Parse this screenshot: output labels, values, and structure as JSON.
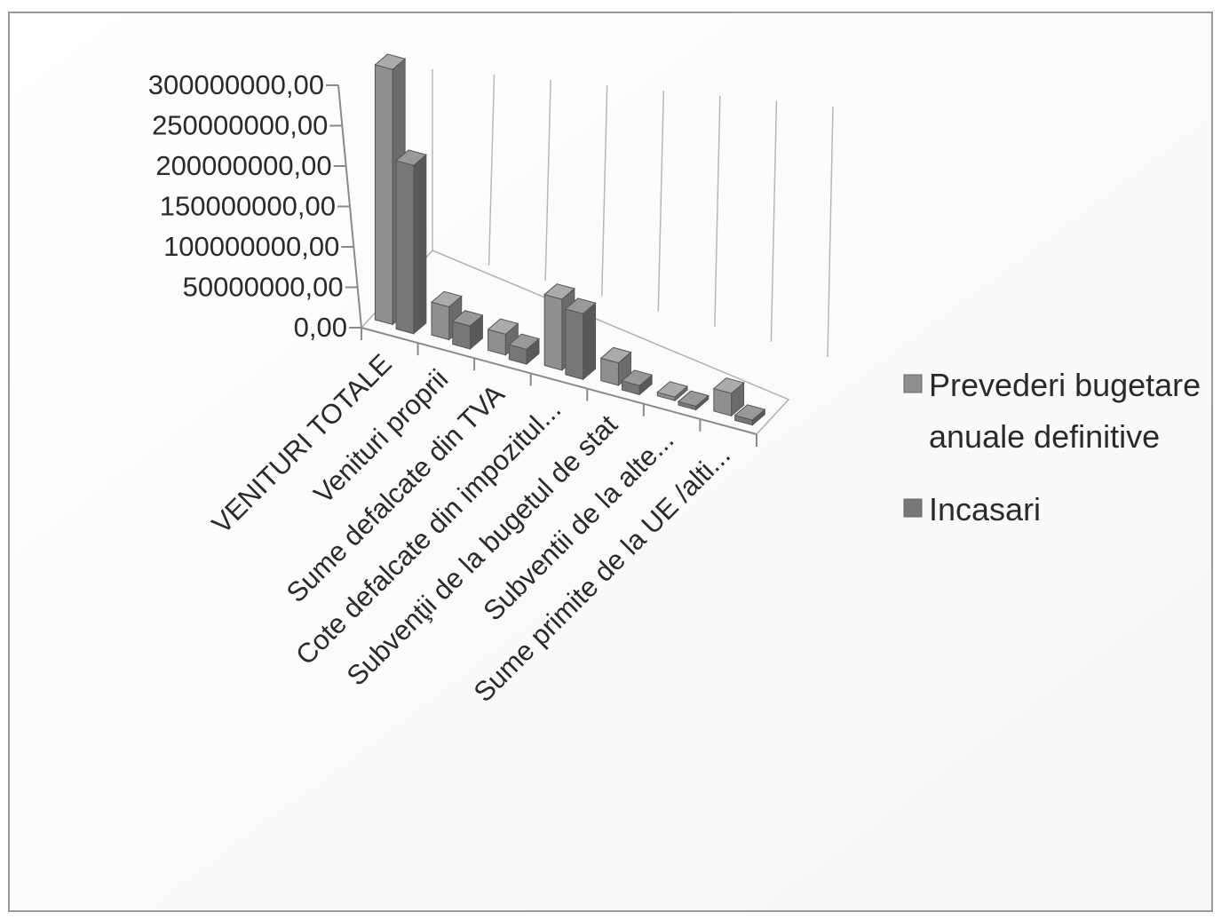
{
  "chart_data": {
    "type": "bar",
    "subtype": "3d-clustered-column",
    "title": "",
    "xlabel": "",
    "ylabel": "",
    "ylim": [
      0,
      300000000
    ],
    "yticks": [
      "0,00",
      "50000000,00",
      "100000000,00",
      "150000000,00",
      "200000000,00",
      "250000000,00",
      "300000000,00"
    ],
    "grid": true,
    "legend_position": "right",
    "categories": [
      "VENITURI TOTALE",
      "Venituri proprii",
      "Sume defalcate din TVA",
      "Cote defalcate din impozitul...",
      "Subvenţii de la bugetul de stat",
      "Subventii de la alte...",
      "Sume primite de la UE /alti..."
    ],
    "series": [
      {
        "name_lines": [
          "Prevederi bugetare",
          "anuale definitive"
        ],
        "color": "#8f8f8f",
        "values": [
          295000000,
          38000000,
          24000000,
          82000000,
          26000000,
          2500000,
          26000000
        ]
      },
      {
        "name_lines": [
          "Incasari"
        ],
        "color": "#777777",
        "values": [
          205000000,
          28000000,
          18000000,
          80000000,
          11000000,
          2000000,
          6000000
        ]
      }
    ]
  }
}
